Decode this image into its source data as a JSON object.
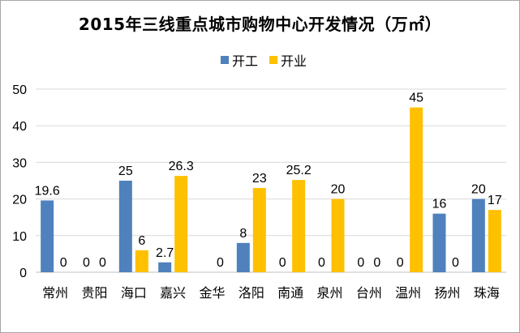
{
  "chart_data": {
    "type": "bar",
    "title": "2015年三线重点城市购物中心开发情况（万㎡）",
    "categories": [
      "常州",
      "贵阳",
      "海口",
      "嘉兴",
      "金华",
      "洛阳",
      "南通",
      "泉州",
      "台州",
      "温州",
      "扬州",
      "珠海"
    ],
    "series": [
      {
        "name": "开工",
        "color": "#4f81bd",
        "values": [
          19.6,
          0,
          25,
          2.7,
          0,
          8,
          0,
          0,
          0,
          0,
          16,
          20
        ]
      },
      {
        "name": "开业",
        "color": "#ffc000",
        "values": [
          0,
          0,
          6,
          26.3,
          0,
          23,
          25.2,
          20,
          0,
          45,
          0,
          17
        ]
      }
    ],
    "data_labels": {
      "开工": [
        "19.6",
        "0",
        "25",
        "2.7",
        null,
        "8",
        "0",
        "0",
        "0",
        "0",
        "16",
        "20"
      ],
      "开业": [
        "0",
        "0",
        "6",
        "26.3",
        "0",
        "23",
        "25.2",
        "20",
        "0",
        "45",
        "0",
        "17"
      ]
    },
    "yticks": [
      0,
      10,
      20,
      30,
      40,
      50
    ],
    "ylim": [
      0,
      50
    ],
    "grid": true,
    "legend_position": "top"
  }
}
